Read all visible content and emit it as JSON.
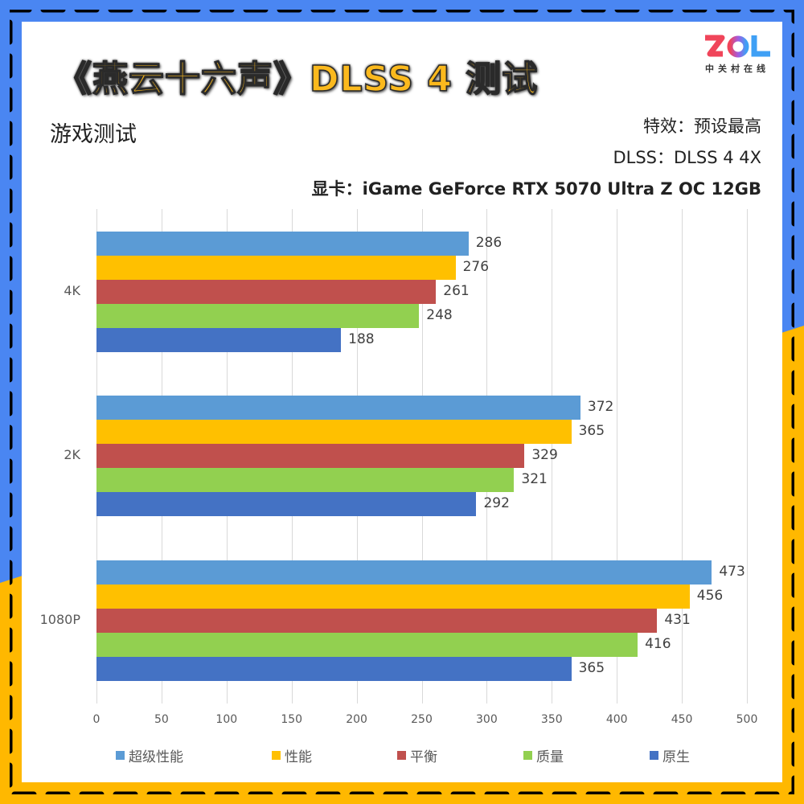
{
  "header": {
    "title": "《燕云十六声》DLSS 4 测试",
    "subtitle": "游戏测试",
    "logo": {
      "text": "ZOL",
      "caption": "中关村在线"
    },
    "meta": [
      "特效：预设最高",
      "DLSS：DLSS 4 4X",
      "显卡：iGame GeForce RTX 5070 Ultra Z OC 12GB"
    ]
  },
  "colors": {
    "frame_blue": "#4a86f2",
    "frame_yellow": "#ffb800",
    "title_fill": "#fbb91d",
    "series": [
      "#5b9bd5",
      "#ffc000",
      "#c0504d",
      "#92d050",
      "#4472c4"
    ]
  },
  "chart_data": {
    "type": "bar",
    "orientation": "horizontal",
    "title": "《燕云十六声》DLSS 4 测试",
    "subtitle": "游戏测试",
    "xlabel": "",
    "ylabel": "",
    "xlim": [
      0,
      500
    ],
    "xticks": [
      0,
      50,
      100,
      150,
      200,
      250,
      300,
      350,
      400,
      450,
      500
    ],
    "grid": true,
    "legend_position": "bottom",
    "categories": [
      "4K",
      "2K",
      "1080P"
    ],
    "series": [
      {
        "name": "超级性能",
        "color": "#5b9bd5",
        "values": [
          286,
          372,
          473
        ]
      },
      {
        "name": "性能",
        "color": "#ffc000",
        "values": [
          276,
          365,
          456
        ]
      },
      {
        "name": "平衡",
        "color": "#c0504d",
        "values": [
          261,
          329,
          431
        ]
      },
      {
        "name": "质量",
        "color": "#92d050",
        "values": [
          248,
          321,
          416
        ]
      },
      {
        "name": "原生",
        "color": "#4472c4",
        "values": [
          188,
          292,
          365
        ]
      }
    ]
  }
}
